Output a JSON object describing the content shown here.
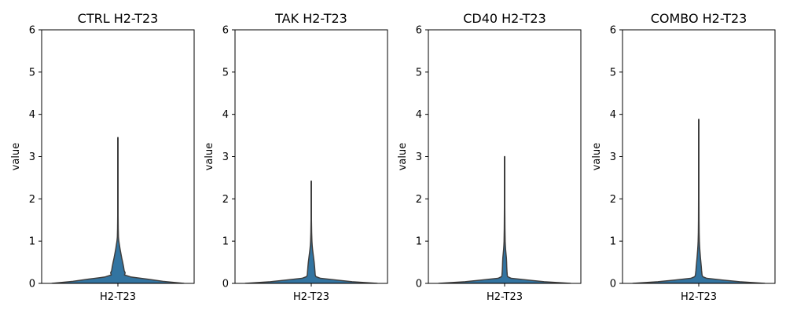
{
  "chart_data": [
    {
      "type": "violin",
      "title": "CTRL H2-T23",
      "ylabel": "value",
      "categories": [
        "H2-T23"
      ],
      "ylim": [
        0,
        6
      ],
      "yticks": [
        "0",
        "1",
        "2",
        "3",
        "4",
        "5",
        "6"
      ],
      "grid": false,
      "max": 3.45,
      "density": [
        [
          0,
          1.0
        ],
        [
          0.05,
          0.68
        ],
        [
          0.1,
          0.45
        ],
        [
          0.15,
          0.2
        ],
        [
          0.2,
          0.1
        ],
        [
          0.25,
          0.11
        ],
        [
          0.3,
          0.095
        ],
        [
          0.4,
          0.085
        ],
        [
          0.5,
          0.072
        ],
        [
          0.6,
          0.058
        ],
        [
          0.7,
          0.046
        ],
        [
          0.8,
          0.034
        ],
        [
          0.9,
          0.024
        ],
        [
          1.0,
          0.014
        ],
        [
          1.1,
          0.008
        ],
        [
          1.3,
          0.005
        ],
        [
          1.6,
          0.003
        ],
        [
          2.5,
          0.003
        ],
        [
          3.45,
          0.003
        ]
      ]
    },
    {
      "type": "violin",
      "title": "TAK H2-T23",
      "ylabel": "value",
      "categories": [
        "H2-T23"
      ],
      "ylim": [
        0,
        6
      ],
      "yticks": [
        "0",
        "1",
        "2",
        "3",
        "4",
        "5",
        "6"
      ],
      "grid": false,
      "max": 2.42,
      "density": [
        [
          0,
          1.0
        ],
        [
          0.04,
          0.62
        ],
        [
          0.08,
          0.38
        ],
        [
          0.12,
          0.14
        ],
        [
          0.16,
          0.07
        ],
        [
          0.2,
          0.06
        ],
        [
          0.3,
          0.055
        ],
        [
          0.4,
          0.05
        ],
        [
          0.5,
          0.044
        ],
        [
          0.6,
          0.036
        ],
        [
          0.7,
          0.028
        ],
        [
          0.8,
          0.02
        ],
        [
          0.9,
          0.014
        ],
        [
          1.0,
          0.01
        ],
        [
          1.2,
          0.006
        ],
        [
          1.5,
          0.003
        ],
        [
          2.42,
          0.003
        ]
      ]
    },
    {
      "type": "violin",
      "title": "CD40 H2-T23",
      "ylabel": "value",
      "categories": [
        "H2-T23"
      ],
      "ylim": [
        0,
        6
      ],
      "yticks": [
        "0",
        "1",
        "2",
        "3",
        "4",
        "5",
        "6"
      ],
      "grid": false,
      "max": 3.0,
      "density": [
        [
          0,
          1.0
        ],
        [
          0.04,
          0.6
        ],
        [
          0.08,
          0.35
        ],
        [
          0.12,
          0.1
        ],
        [
          0.16,
          0.045
        ],
        [
          0.2,
          0.04
        ],
        [
          0.3,
          0.035
        ],
        [
          0.4,
          0.032
        ],
        [
          0.5,
          0.03
        ],
        [
          0.6,
          0.027
        ],
        [
          0.7,
          0.021
        ],
        [
          0.8,
          0.015
        ],
        [
          0.9,
          0.011
        ],
        [
          1.0,
          0.008
        ],
        [
          1.3,
          0.005
        ],
        [
          1.8,
          0.003
        ],
        [
          3.0,
          0.003
        ]
      ]
    },
    {
      "type": "violin",
      "title": "COMBO H2-T23",
      "ylabel": "value",
      "categories": [
        "H2-T23"
      ],
      "ylim": [
        0,
        6
      ],
      "yticks": [
        "0",
        "1",
        "2",
        "3",
        "4",
        "5",
        "6"
      ],
      "grid": false,
      "max": 3.88,
      "density": [
        [
          0,
          1.0
        ],
        [
          0.04,
          0.62
        ],
        [
          0.08,
          0.36
        ],
        [
          0.12,
          0.12
        ],
        [
          0.16,
          0.06
        ],
        [
          0.2,
          0.05
        ],
        [
          0.3,
          0.043
        ],
        [
          0.4,
          0.038
        ],
        [
          0.5,
          0.032
        ],
        [
          0.6,
          0.026
        ],
        [
          0.7,
          0.021
        ],
        [
          0.8,
          0.016
        ],
        [
          0.9,
          0.012
        ],
        [
          1.0,
          0.009
        ],
        [
          1.2,
          0.006
        ],
        [
          1.5,
          0.004
        ],
        [
          2.0,
          0.003
        ],
        [
          3.88,
          0.003
        ]
      ]
    }
  ],
  "colors": {
    "violin_fill": "#3274a1",
    "violin_edge": "#3f3f3f"
  }
}
